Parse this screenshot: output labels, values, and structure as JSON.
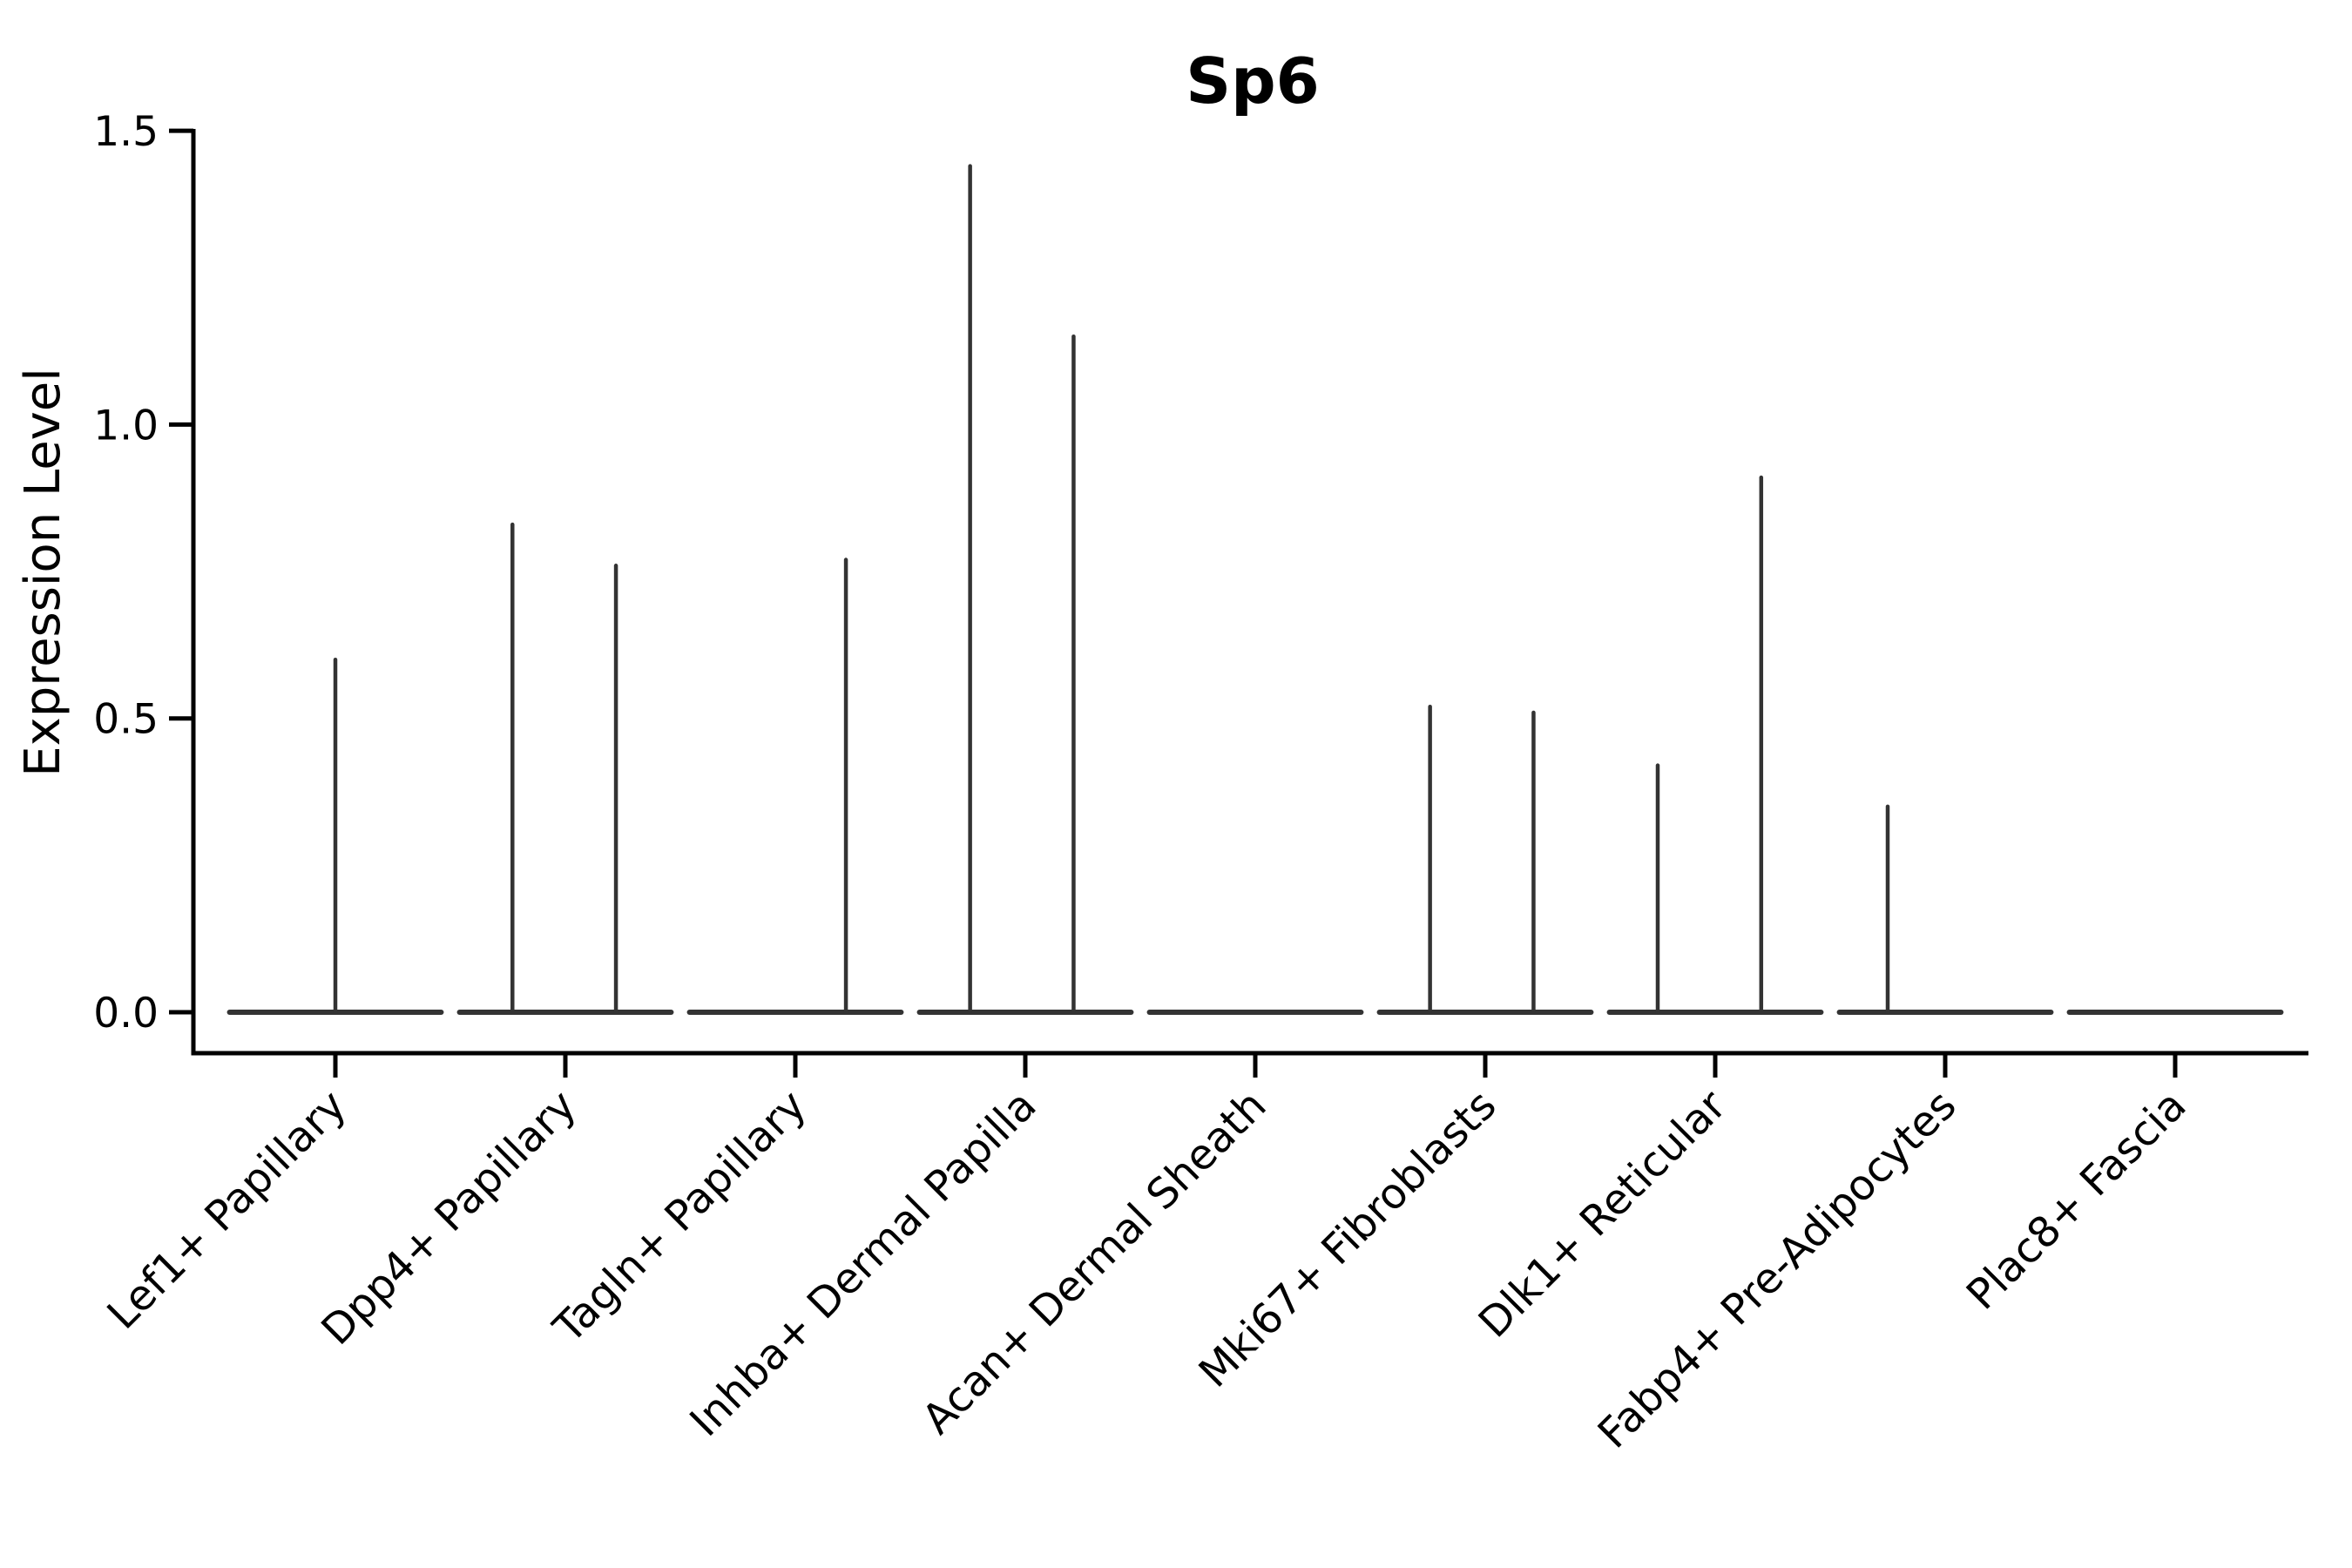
{
  "figure": {
    "background": "#ffffff"
  },
  "chart_data": {
    "type": "violin",
    "title": "Sp6",
    "xlabel": "",
    "ylabel": "Expression Level",
    "ylim": [
      0.0,
      1.5
    ],
    "grid": false,
    "legend": "none",
    "colors": {
      "violin": "#333333",
      "axis": "#000000",
      "text": "#000000"
    },
    "yticks": [
      {
        "value": 0.0,
        "label": "0.0"
      },
      {
        "value": 0.5,
        "label": "0.5"
      },
      {
        "value": 1.0,
        "label": "1.0"
      },
      {
        "value": 1.5,
        "label": "1.5"
      }
    ],
    "violin_halfwidth_frac": 0.46,
    "categories": [
      {
        "label": "Lef1+ Papillary",
        "baseline_value": 0.0,
        "spikes": [
          {
            "offset": 0.0,
            "max": 0.6
          }
        ]
      },
      {
        "label": "Dpp4+ Papillary",
        "baseline_value": 0.0,
        "spikes": [
          {
            "offset": -0.23,
            "max": 0.83
          },
          {
            "offset": 0.22,
            "max": 0.76
          }
        ]
      },
      {
        "label": "Tagln+ Papillary",
        "baseline_value": 0.0,
        "spikes": [
          {
            "offset": 0.22,
            "max": 0.77
          }
        ]
      },
      {
        "label": "Inhba+ Dermal Papilla",
        "baseline_value": 0.0,
        "spikes": [
          {
            "offset": -0.24,
            "max": 1.44
          },
          {
            "offset": 0.21,
            "max": 1.15
          }
        ]
      },
      {
        "label": "Acan+ Dermal Sheath",
        "baseline_value": 0.0,
        "spikes": []
      },
      {
        "label": "Mki67+ Fibroblasts",
        "baseline_value": 0.0,
        "spikes": [
          {
            "offset": -0.24,
            "max": 0.52
          },
          {
            "offset": 0.21,
            "max": 0.51
          }
        ]
      },
      {
        "label": "Dlk1+ Reticular",
        "baseline_value": 0.0,
        "spikes": [
          {
            "offset": -0.25,
            "max": 0.42
          },
          {
            "offset": 0.2,
            "max": 0.91
          }
        ]
      },
      {
        "label": "Fabp4+ Pre-Adipocytes",
        "baseline_value": 0.0,
        "spikes": [
          {
            "offset": -0.25,
            "max": 0.35
          }
        ]
      },
      {
        "label": "Plac8+ Fascia",
        "baseline_value": 0.0,
        "spikes": []
      }
    ]
  }
}
